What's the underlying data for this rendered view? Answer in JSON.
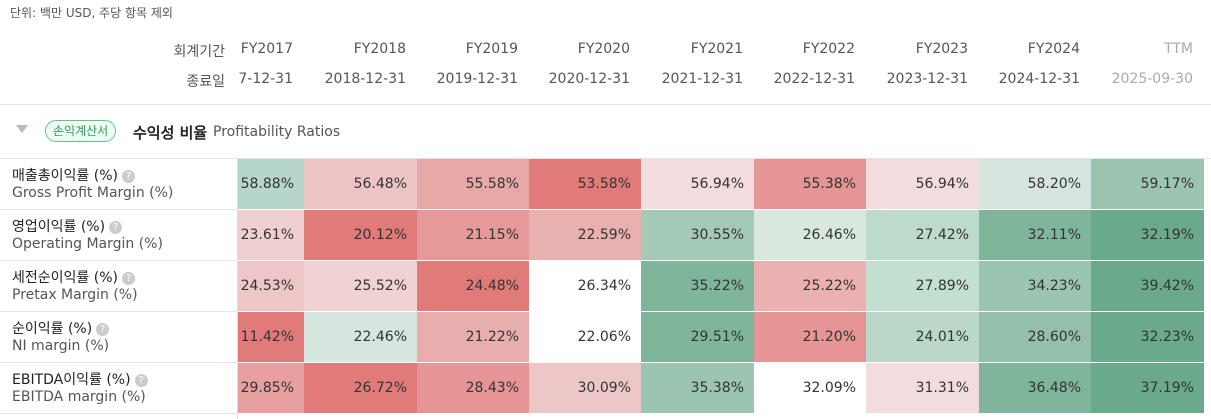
{
  "unit_note": "단위: 백만 USD, 주당 항목 제외",
  "header": {
    "period_label": "회계기간",
    "end_label": "종료일",
    "columns": [
      {
        "period": "FY2017",
        "end": "7-12-31"
      },
      {
        "period": "FY2018",
        "end": "2018-12-31"
      },
      {
        "period": "FY2019",
        "end": "2019-12-31"
      },
      {
        "period": "FY2020",
        "end": "2020-12-31"
      },
      {
        "period": "FY2021",
        "end": "2021-12-31"
      },
      {
        "period": "FY2022",
        "end": "2022-12-31"
      },
      {
        "period": "FY2023",
        "end": "2023-12-31"
      },
      {
        "period": "FY2024",
        "end": "2024-12-31"
      },
      {
        "period": "TTM",
        "end": "2025-09-30"
      }
    ]
  },
  "section": {
    "badge": "손익계산서",
    "title": "수익성 비율",
    "title_en": "Profitability Ratios"
  },
  "rows": [
    {
      "label_ko": "매출총이익률 (%)",
      "label_en": "Gross Profit Margin (%)",
      "cells": [
        "58.88%",
        "56.48%",
        "55.58%",
        "53.58%",
        "56.94%",
        "55.38%",
        "56.94%",
        "58.20%",
        "59.17%"
      ],
      "colors": [
        "#b5d6c8",
        "#ecc4c6",
        "#e6a9a8",
        "#e07b7a",
        "#f3dcdd",
        "#e49594",
        "#f3dcdd",
        "#d5e5dd",
        "#9cc5b1"
      ]
    },
    {
      "label_ko": "영업이익률 (%)",
      "label_en": "Operating Margin (%)",
      "cells": [
        "23.61%",
        "20.12%",
        "21.15%",
        "22.59%",
        "30.55%",
        "26.46%",
        "27.42%",
        "32.11%",
        "32.19%"
      ],
      "colors": [
        "#f0cfd0",
        "#e07b7a",
        "#e59a99",
        "#e9b0b0",
        "#a4cab7",
        "#d8e8df",
        "#bddbcc",
        "#7fb59b",
        "#6aaa8a"
      ]
    },
    {
      "label_ko": "세전순이익률 (%)",
      "label_en": "Pretax Margin (%)",
      "cells": [
        "24.53%",
        "25.52%",
        "24.48%",
        "26.34%",
        "35.22%",
        "25.22%",
        "27.89%",
        "34.23%",
        "39.42%"
      ],
      "colors": [
        "#eec6c7",
        "#f0d2d3",
        "#e07b7a",
        "#ffffff",
        "#7fb59b",
        "#eab1b0",
        "#c3dfd1",
        "#9cc5b1",
        "#6aaa8a"
      ]
    },
    {
      "label_ko": "순이익률 (%)",
      "label_en": "NI margin (%)",
      "cells": [
        "11.42%",
        "22.46%",
        "21.22%",
        "22.06%",
        "29.51%",
        "21.20%",
        "24.01%",
        "28.60%",
        "32.23%"
      ],
      "colors": [
        "#e07b7a",
        "#d6e6de",
        "#e8aeae",
        "#ffffff",
        "#7fb59b",
        "#e49594",
        "#b9d8c9",
        "#94c0ab",
        "#6aaa8a"
      ]
    },
    {
      "label_ko": "EBITDA이익률 (%)",
      "label_en": "EBITDA margin (%)",
      "cells": [
        "29.85%",
        "26.72%",
        "28.43%",
        "30.09%",
        "35.38%",
        "32.09%",
        "31.31%",
        "36.48%",
        "37.19%"
      ],
      "colors": [
        "#e89f9f",
        "#e07b7a",
        "#e59595",
        "#edc6c7",
        "#9cc5b1",
        "#ffffff",
        "#f3dcdd",
        "#7fb59b",
        "#6aaa8a"
      ]
    }
  ]
}
